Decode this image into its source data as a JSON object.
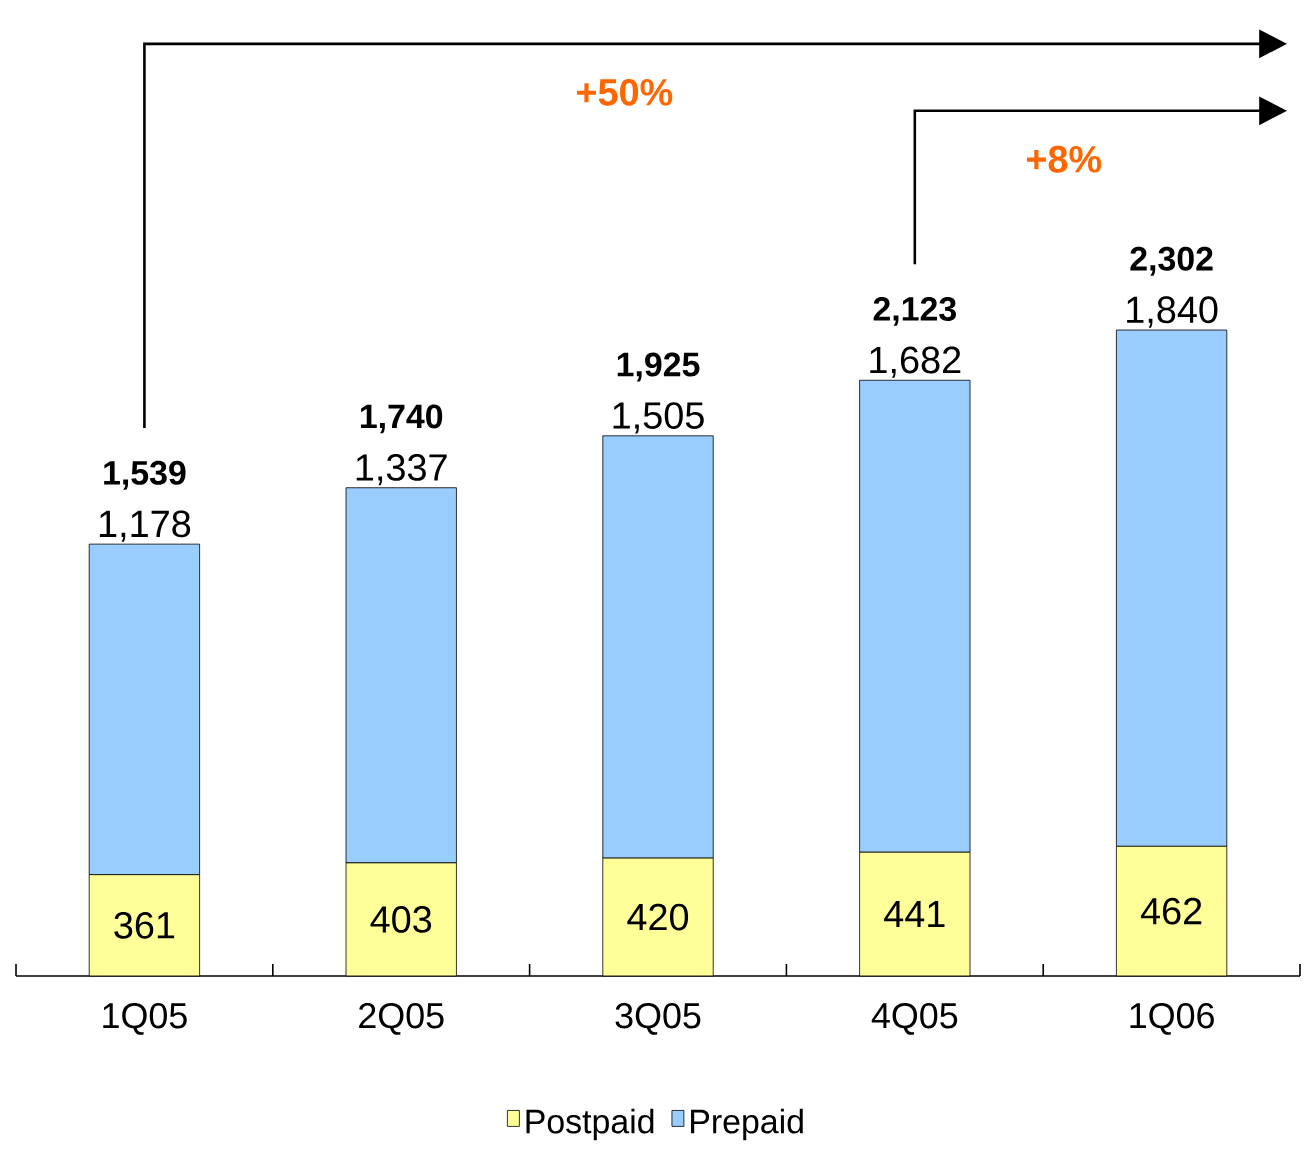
{
  "chart_data": {
    "type": "bar",
    "stacked": true,
    "categories": [
      "1Q05",
      "2Q05",
      "3Q05",
      "4Q05",
      "1Q06"
    ],
    "series": [
      {
        "name": "Postpaid",
        "color": "#ffff99",
        "values": [
          361,
          403,
          420,
          441,
          462
        ],
        "value_labels": [
          "361",
          "403",
          "420",
          "441",
          "462"
        ]
      },
      {
        "name": "Prepaid",
        "color": "#99ccff",
        "values": [
          1178,
          1337,
          1505,
          1682,
          1840
        ],
        "value_labels": [
          "1,178",
          "1,337",
          "1,505",
          "1,682",
          "1,840"
        ]
      }
    ],
    "totals": [
      "1,539",
      "1,740",
      "1,925",
      "2,123",
      "2,302"
    ],
    "annotations": [
      "+50%",
      "+8%"
    ],
    "legend": "bottom"
  }
}
